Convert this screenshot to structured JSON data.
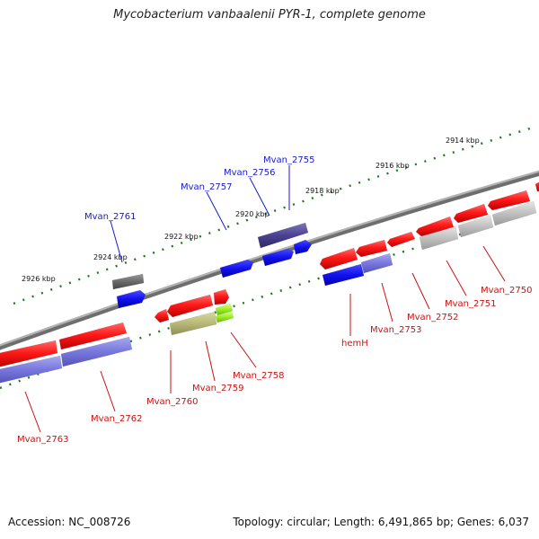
{
  "title": "Mycobacterium vanbaalenii PYR-1, complete genome",
  "accession": "Accession: NC_008726",
  "summary": "Topology: circular; Length: 6,491,865 bp; Genes: 6,037",
  "colors": {
    "backbone": "#808080",
    "ruler_tick": "#1e7a1e",
    "forward_label": "#1a1acc",
    "reverse_label": "#cc1111",
    "red_gene": "#ff1a1a",
    "purple_gene": "#7777dd",
    "blue_gene": "#1111ee",
    "gray_gene": "#c0c0c0"
  },
  "ruler_labels": [
    {
      "text": "2914 kbp",
      "kbp": 2914
    },
    {
      "text": "2916 kbp",
      "kbp": 2916
    },
    {
      "text": "2918 kbp",
      "kbp": 2918
    },
    {
      "text": "2920 kbp",
      "kbp": 2920
    },
    {
      "text": "2922 kbp",
      "kbp": 2922
    },
    {
      "text": "2924 kbp",
      "kbp": 2924
    },
    {
      "text": "2926 kbp",
      "kbp": 2926
    }
  ],
  "forward_genes": [
    "Mvan_2755",
    "Mvan_2756",
    "Mvan_2757",
    "Mvan_2761"
  ],
  "reverse_genes": [
    "Mvan_2750",
    "Mvan_2751",
    "Mvan_2752",
    "hemH",
    "Mvan_2753",
    "Mvan_2758",
    "Mvan_2759",
    "Mvan_2760",
    "Mvan_2762",
    "Mvan_2763"
  ]
}
